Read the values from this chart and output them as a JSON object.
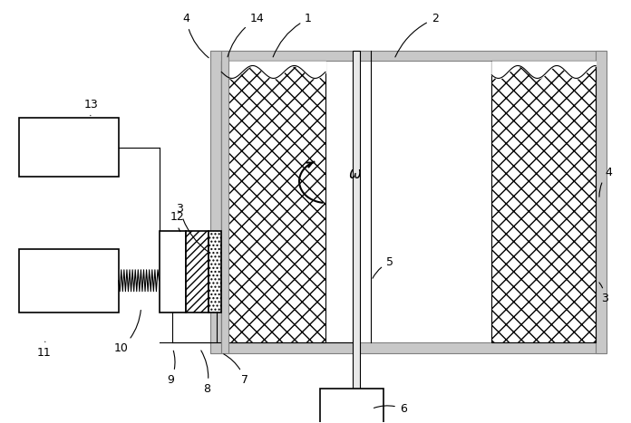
{
  "background_color": "#ffffff",
  "fig_width": 6.96,
  "fig_height": 4.67,
  "dpi": 100,
  "wall_color": "#c8c8c8",
  "wall_edge": "#808080",
  "motor_color": "#ffffff",
  "box_color": "#ffffff",
  "label_fontsize": 9
}
